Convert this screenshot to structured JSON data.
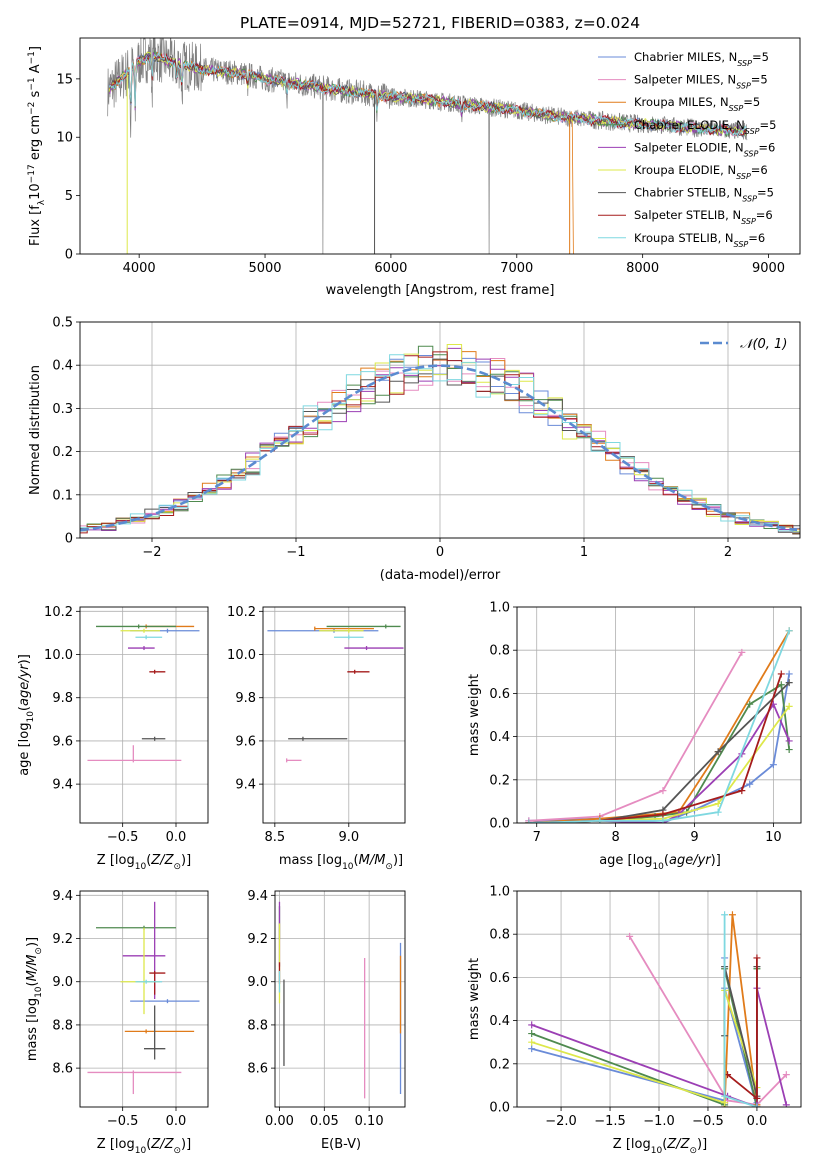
{
  "figure": {
    "title": "PLATE=0914, MJD=52721, FIBERID=0383, z=0.024"
  },
  "colors": {
    "models": [
      "#6a8bd8",
      "#e58cc0",
      "#e07b1a",
      "#4f8a4f",
      "#9b3fb4",
      "#dde84a",
      "#555555",
      "#a51c1c",
      "#7fd8e0"
    ],
    "data_line": "#808080",
    "gaussian": "#5b8bd0",
    "grid": "#b0b0b0"
  },
  "chart_data": [
    {
      "type": "line",
      "id": "spectrum",
      "title": "PLATE=0914, MJD=52721, FIBERID=0383, z=0.024",
      "xlabel": "wavelength [Angstrom, rest frame]",
      "ylabel": "Flux [f_λ10^{-17} erg cm^{-2} s^{-1} A^{-1}]",
      "xlim": [
        3530,
        9250
      ],
      "ylim": [
        0,
        18.5
      ],
      "xticks": [
        4000,
        5000,
        6000,
        7000,
        8000,
        9000
      ],
      "yticks": [
        0,
        5,
        10,
        15
      ],
      "grid": false,
      "legend_position": "top-right",
      "series": [
        {
          "name": "Chabrier MILES, N_SSP=5"
        },
        {
          "name": "Salpeter MILES, N_SSP=5"
        },
        {
          "name": "Kroupa MILES, N_SSP=5"
        },
        {
          "name": "Chabrier ELODIE, N_SSP=5"
        },
        {
          "name": "Salpeter ELODIE, N_SSP=6"
        },
        {
          "name": "Kroupa ELODIE, N_SSP=6"
        },
        {
          "name": "Chabrier STELIB, N_SSP=5"
        },
        {
          "name": "Salpeter STELIB, N_SSP=6"
        },
        {
          "name": "Kroupa STELIB, N_SSP=6"
        }
      ],
      "continuum": {
        "x": [
          3750,
          3900,
          4000,
          4100,
          4300,
          4500,
          4800,
          5000,
          5300,
          5600,
          6000,
          6300,
          6600,
          7000,
          7300,
          7600,
          7900,
          8200,
          8500,
          8800
        ],
        "y": [
          14.0,
          15.5,
          16.5,
          17.0,
          16.3,
          15.8,
          15.5,
          15.0,
          14.5,
          14.0,
          13.5,
          13.2,
          12.8,
          12.3,
          11.8,
          11.5,
          11.2,
          11.0,
          10.7,
          10.5
        ]
      }
    },
    {
      "type": "histogram",
      "id": "residuals",
      "xlabel": "(data-model)/error",
      "ylabel": "Normed distribution",
      "xlim": [
        -2.5,
        2.5
      ],
      "ylim": [
        0,
        0.5
      ],
      "xticks": [
        -2,
        -1,
        0,
        1,
        2
      ],
      "yticks": [
        0,
        0.1,
        0.2,
        0.3,
        0.4,
        0.5
      ],
      "grid": true,
      "legend_position": "top-right",
      "gaussian_label": "𝒩(0, 1)",
      "bin_width": 0.1
    },
    {
      "type": "scatter",
      "id": "age_vs_Z",
      "xlabel": "Z [log10(Z/Z⊙)]",
      "ylabel": "age [log10(age/yr)]",
      "xlim": [
        -0.9,
        0.3
      ],
      "ylim": [
        9.22,
        10.22
      ],
      "xticks": [
        -0.5,
        0.0
      ],
      "yticks": [
        9.4,
        9.6,
        9.8,
        10.0,
        10.2
      ],
      "grid": true,
      "points": [
        {
          "x": -0.08,
          "y": 10.11,
          "xerr": [
            0.35,
            0.3
          ],
          "yerr": [
            0,
            0
          ]
        },
        {
          "x": -0.4,
          "y": 9.51,
          "xerr": [
            0.43,
            0.45
          ],
          "yerr": [
            0,
            0.07
          ]
        },
        {
          "x": -0.28,
          "y": 10.13,
          "xerr": [
            0.0,
            0.45
          ],
          "yerr": [
            0,
            0
          ]
        },
        {
          "x": -0.35,
          "y": 10.13,
          "xerr": [
            0.4,
            0.35
          ],
          "yerr": [
            0,
            0
          ]
        },
        {
          "x": -0.3,
          "y": 10.03,
          "xerr": [
            0.15,
            0.1
          ],
          "yerr": [
            0,
            0
          ]
        },
        {
          "x": -0.3,
          "y": 10.11,
          "xerr": [
            0.22,
            0.15
          ],
          "yerr": [
            0,
            0
          ]
        },
        {
          "x": -0.2,
          "y": 9.61,
          "xerr": [
            0.12,
            0.1
          ],
          "yerr": [
            0,
            0
          ]
        },
        {
          "x": -0.2,
          "y": 9.92,
          "xerr": [
            0.05,
            0.1
          ],
          "yerr": [
            0,
            0
          ]
        },
        {
          "x": -0.28,
          "y": 10.08,
          "xerr": [
            0.1,
            0.15
          ],
          "yerr": [
            0,
            0
          ]
        }
      ]
    },
    {
      "type": "scatter",
      "id": "age_vs_mass",
      "xlabel": "mass [log10(M/M⊙)]",
      "ylabel": "",
      "xlim": [
        8.42,
        9.38
      ],
      "ylim": [
        9.22,
        10.22
      ],
      "xticks": [
        8.5,
        9.0
      ],
      "yticks": [
        9.4,
        9.6,
        9.8,
        10.0,
        10.2
      ],
      "grid": true,
      "points": [
        {
          "x": 8.9,
          "y": 10.11,
          "xerr": [
            0.45,
            0.3
          ],
          "yerr": [
            0,
            0
          ]
        },
        {
          "x": 8.58,
          "y": 9.51,
          "xerr": [
            0.0,
            0.1
          ],
          "yerr": [
            0,
            0
          ]
        },
        {
          "x": 8.77,
          "y": 10.12,
          "xerr": [
            0.0,
            0.4
          ],
          "yerr": [
            0,
            0
          ]
        },
        {
          "x": 9.25,
          "y": 10.13,
          "xerr": [
            0.4,
            0.1
          ],
          "yerr": [
            0,
            0
          ]
        },
        {
          "x": 9.12,
          "y": 10.03,
          "xerr": [
            0.15,
            0.25
          ],
          "yerr": [
            0,
            0
          ]
        },
        {
          "x": 9.0,
          "y": 10.11,
          "xerr": [
            0.2,
            0.1
          ],
          "yerr": [
            0,
            0
          ]
        },
        {
          "x": 8.69,
          "y": 9.61,
          "xerr": [
            0.1,
            0.3
          ],
          "yerr": [
            0,
            0
          ]
        },
        {
          "x": 9.04,
          "y": 9.92,
          "xerr": [
            0.05,
            0.1
          ],
          "yerr": [
            0,
            0
          ]
        },
        {
          "x": 9.0,
          "y": 10.08,
          "xerr": [
            0.1,
            0.1
          ],
          "yerr": [
            0,
            0
          ]
        }
      ]
    },
    {
      "type": "line",
      "id": "massweight_vs_age",
      "xlabel": "age [log10(age/yr)]",
      "ylabel": "mass weight",
      "xlim": [
        6.75,
        10.35
      ],
      "ylim": [
        0,
        1.0
      ],
      "xticks": [
        7,
        8,
        9,
        10
      ],
      "yticks": [
        0.0,
        0.2,
        0.4,
        0.6,
        0.8,
        1.0
      ],
      "grid": true,
      "series": [
        {
          "x": [
            6.9,
            7.8,
            8.6,
            9.0,
            9.7,
            10.0,
            10.2
          ],
          "y": [
            0.01,
            0.02,
            0.0,
            0.06,
            0.18,
            0.27,
            0.69
          ]
        },
        {
          "x": [
            6.9,
            7.8,
            8.6,
            9.6
          ],
          "y": [
            0.01,
            0.03,
            0.15,
            0.79
          ]
        },
        {
          "x": [
            6.9,
            7.8,
            8.8,
            9.3,
            10.2
          ],
          "y": [
            0.0,
            0.02,
            0.05,
            0.33,
            0.89
          ]
        },
        {
          "x": [
            6.9,
            7.8,
            8.5,
            8.9,
            9.7,
            10.1,
            10.2
          ],
          "y": [
            0.0,
            0.01,
            0.03,
            0.05,
            0.55,
            0.64,
            0.34
          ]
        },
        {
          "x": [
            6.9,
            7.8,
            8.6,
            8.8,
            9.6,
            10.0,
            10.2
          ],
          "y": [
            0.0,
            0.01,
            0.0,
            0.04,
            0.32,
            0.55,
            0.38
          ]
        },
        {
          "x": [
            6.9,
            7.8,
            8.6,
            9.3,
            10.2
          ],
          "y": [
            0.0,
            0.01,
            0.02,
            0.09,
            0.54
          ]
        },
        {
          "x": [
            6.9,
            7.8,
            8.6,
            9.3,
            10.2
          ],
          "y": [
            0.0,
            0.01,
            0.06,
            0.33,
            0.65
          ]
        },
        {
          "x": [
            6.9,
            7.8,
            8.6,
            9.6,
            10.1
          ],
          "y": [
            0.0,
            0.01,
            0.04,
            0.15,
            0.69
          ]
        },
        {
          "x": [
            6.9,
            7.8,
            8.6,
            9.3,
            10.2
          ],
          "y": [
            0.0,
            0.01,
            0.01,
            0.05,
            0.89
          ]
        }
      ]
    },
    {
      "type": "scatter",
      "id": "mass_vs_Z",
      "xlabel": "Z [log10(Z/Z⊙)]",
      "ylabel": "mass [log10(M/M⊙)]",
      "xlim": [
        -0.9,
        0.3
      ],
      "ylim": [
        8.42,
        9.42
      ],
      "xticks": [
        -0.5,
        0.0
      ],
      "yticks": [
        8.6,
        8.8,
        9.0,
        9.2,
        9.4
      ],
      "grid": true,
      "points": [
        {
          "x": -0.08,
          "y": 8.91,
          "xerr": [
            0.35,
            0.3
          ],
          "yerr": [
            0,
            0
          ]
        },
        {
          "x": -0.4,
          "y": 8.58,
          "xerr": [
            0.43,
            0.45
          ],
          "yerr": [
            0.1,
            0
          ]
        },
        {
          "x": -0.28,
          "y": 8.77,
          "xerr": [
            0.2,
            0.45
          ],
          "yerr": [
            0,
            0
          ]
        },
        {
          "x": -0.3,
          "y": 9.25,
          "xerr": [
            0.45,
            0.3
          ],
          "yerr": [
            0,
            0
          ]
        },
        {
          "x": -0.2,
          "y": 9.12,
          "xerr": [
            0.3,
            0.1
          ],
          "yerr": [
            0.2,
            0.25
          ]
        },
        {
          "x": -0.3,
          "y": 9.0,
          "xerr": [
            0.22,
            0.15
          ],
          "yerr": [
            0.15,
            0.25
          ]
        },
        {
          "x": -0.2,
          "y": 8.69,
          "xerr": [
            0.1,
            0.1
          ],
          "yerr": [
            0.05,
            0.2
          ]
        },
        {
          "x": -0.2,
          "y": 9.04,
          "xerr": [
            0.05,
            0.1
          ],
          "yerr": [
            0.1,
            0.0
          ]
        },
        {
          "x": -0.28,
          "y": 9.0,
          "xerr": [
            0.1,
            0.15
          ],
          "yerr": [
            0,
            0
          ]
        }
      ]
    },
    {
      "type": "scatter",
      "id": "mass_vs_EBV",
      "xlabel": "E(B-V)",
      "ylabel": "",
      "xlim": [
        -0.005,
        0.14
      ],
      "ylim": [
        8.42,
        9.42
      ],
      "xticks": [
        0.0,
        0.05,
        0.1
      ],
      "yticks": [
        8.6,
        8.8,
        9.0,
        9.2,
        9.4
      ],
      "grid": true,
      "points": [
        {
          "x": 0.135,
          "y": 8.91,
          "xerr": [
            0,
            0
          ],
          "yerr": [
            0.43,
            0.27
          ]
        },
        {
          "x": 0.095,
          "y": 8.58,
          "xerr": [
            0,
            0
          ],
          "yerr": [
            0.12,
            0.53
          ]
        },
        {
          "x": 0.135,
          "y": 8.77,
          "xerr": [
            0,
            0
          ],
          "yerr": [
            0,
            0.35
          ]
        },
        {
          "x": 0.0,
          "y": 9.25,
          "xerr": [
            0,
            0
          ],
          "yerr": [
            0.05,
            0.1
          ]
        },
        {
          "x": 0.0,
          "y": 9.12,
          "xerr": [
            0,
            0
          ],
          "yerr": [
            0.05,
            0.25
          ]
        },
        {
          "x": 0.0,
          "y": 9.0,
          "xerr": [
            0,
            0
          ],
          "yerr": [
            0.1,
            0.27
          ]
        },
        {
          "x": 0.005,
          "y": 8.69,
          "xerr": [
            0,
            0
          ],
          "yerr": [
            0.08,
            0.32
          ]
        },
        {
          "x": 0.0,
          "y": 9.04,
          "xerr": [
            0,
            0
          ],
          "yerr": [
            0.05,
            0.05
          ]
        },
        {
          "x": 0.0,
          "y": 9.0,
          "xerr": [
            0,
            0
          ],
          "yerr": [
            0.05,
            0.05
          ]
        }
      ]
    },
    {
      "type": "line",
      "id": "massweight_vs_Z",
      "xlabel": "Z [log10(Z/Z⊙)]",
      "ylabel": "mass weight",
      "xlim": [
        -2.45,
        0.45
      ],
      "ylim": [
        0,
        1.0
      ],
      "xticks": [
        -2.0,
        -1.5,
        -1.0,
        -0.5,
        0.0
      ],
      "yticks": [
        0.0,
        0.2,
        0.4,
        0.6,
        0.8,
        1.0
      ],
      "grid": true,
      "series": [
        {
          "x": [
            -2.3,
            -0.33,
            -0.33,
            -0.33,
            0.0,
            0.0
          ],
          "y": [
            0.27,
            0.03,
            0.69,
            0.55,
            0.0,
            0.02
          ]
        },
        {
          "x": [
            -1.3,
            -0.3,
            0.0,
            0.3
          ],
          "y": [
            0.79,
            0.03,
            0.01,
            0.15
          ]
        },
        {
          "x": [
            -0.33,
            -0.25,
            0.0
          ],
          "y": [
            0.0,
            0.89,
            0.01
          ]
        },
        {
          "x": [
            -2.3,
            -0.33,
            -0.33,
            0.0,
            0.0
          ],
          "y": [
            0.34,
            0.01,
            0.64,
            0.0,
            0.64
          ]
        },
        {
          "x": [
            -2.3,
            -0.3,
            0.0,
            0.0,
            0.3
          ],
          "y": [
            0.38,
            0.05,
            0.0,
            0.55,
            0.01
          ]
        },
        {
          "x": [
            -2.3,
            -0.33,
            -0.33,
            0.0
          ],
          "y": [
            0.3,
            0.02,
            0.54,
            0.09
          ]
        },
        {
          "x": [
            -0.33,
            -0.33,
            0.0,
            0.0
          ],
          "y": [
            0.33,
            0.65,
            0.05,
            0.65
          ]
        },
        {
          "x": [
            -0.3,
            0.0,
            0.0
          ],
          "y": [
            0.15,
            0.04,
            0.69
          ]
        },
        {
          "x": [
            -0.33,
            -0.33,
            0.0
          ],
          "y": [
            0.89,
            0.05,
            0.0
          ]
        }
      ]
    }
  ]
}
